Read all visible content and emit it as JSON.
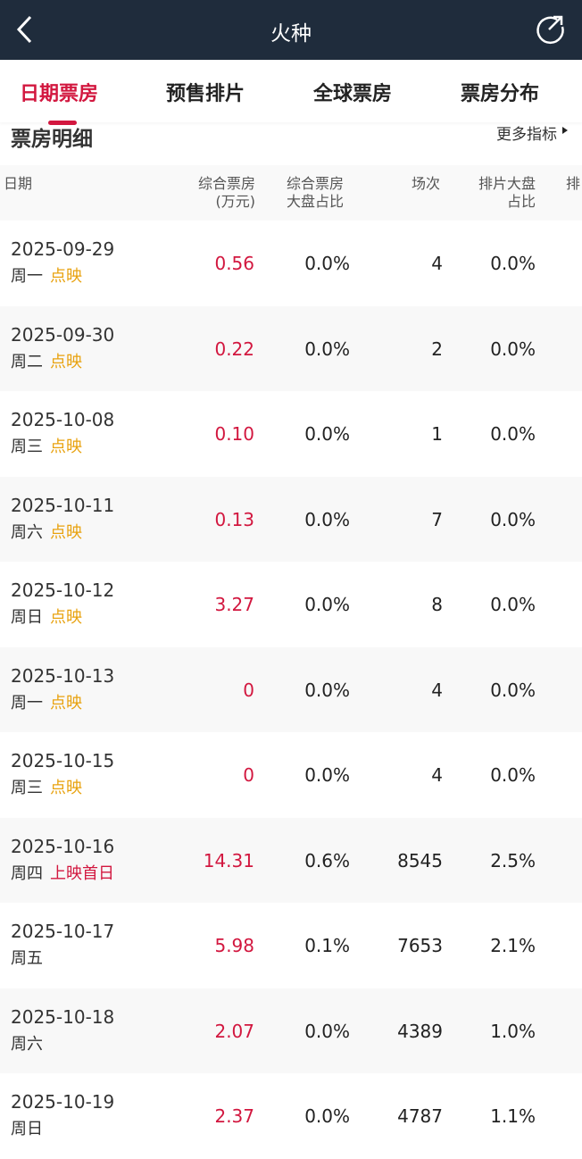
{
  "nav": {
    "title": "火种",
    "back_icon": "chevron-left-icon",
    "share_icon": "share-icon"
  },
  "tabs": [
    {
      "label": "日期票房",
      "active": true
    },
    {
      "label": "预售排片"
    },
    {
      "label": "全球票房"
    },
    {
      "label": "票房分布"
    }
  ],
  "section": {
    "title": "票房明细",
    "more": "更多指标"
  },
  "table": {
    "headers": [
      "日期",
      "综合票房",
      "(万元)",
      "综合票房",
      "大盘占比",
      "场次",
      "排片大盘",
      "占比",
      "排"
    ],
    "rows": [
      {
        "date": "2025-09-29",
        "weekday": "周一",
        "tag": "点映",
        "tag_color": "orange",
        "box": "0.56",
        "share": "0.0%",
        "shows": "4",
        "sched": "0.0%"
      },
      {
        "date": "2025-09-30",
        "weekday": "周二",
        "tag": "点映",
        "tag_color": "orange",
        "box": "0.22",
        "share": "0.0%",
        "shows": "2",
        "sched": "0.0%"
      },
      {
        "date": "2025-10-08",
        "weekday": "周三",
        "tag": "点映",
        "tag_color": "orange",
        "box": "0.10",
        "share": "0.0%",
        "shows": "1",
        "sched": "0.0%"
      },
      {
        "date": "2025-10-11",
        "weekday": "周六",
        "tag": "点映",
        "tag_color": "orange",
        "box": "0.13",
        "share": "0.0%",
        "shows": "7",
        "sched": "0.0%"
      },
      {
        "date": "2025-10-12",
        "weekday": "周日",
        "tag": "点映",
        "tag_color": "orange",
        "box": "3.27",
        "share": "0.0%",
        "shows": "8",
        "sched": "0.0%"
      },
      {
        "date": "2025-10-13",
        "weekday": "周一",
        "tag": "点映",
        "tag_color": "orange",
        "box": "0",
        "share": "0.0%",
        "shows": "4",
        "sched": "0.0%"
      },
      {
        "date": "2025-10-15",
        "weekday": "周三",
        "tag": "点映",
        "tag_color": "orange",
        "box": "0",
        "share": "0.0%",
        "shows": "4",
        "sched": "0.0%"
      },
      {
        "date": "2025-10-16",
        "weekday": "周四",
        "tag": "上映首日",
        "tag_color": "red",
        "box": "14.31",
        "share": "0.6%",
        "shows": "8545",
        "sched": "2.5%"
      },
      {
        "date": "2025-10-17",
        "weekday": "周五",
        "tag": "",
        "box": "5.98",
        "share": "0.1%",
        "shows": "7653",
        "sched": "2.1%"
      },
      {
        "date": "2025-10-18",
        "weekday": "周六",
        "weekday_red": true,
        "tag": "",
        "box": "2.07",
        "share": "0.0%",
        "shows": "4389",
        "sched": "1.0%"
      },
      {
        "date": "2025-10-19",
        "weekday": "周日",
        "weekday_red": true,
        "tag": "",
        "box": "2.37",
        "share": "0.0%",
        "shows": "4787",
        "sched": "1.1%"
      }
    ]
  },
  "colors": {
    "accent": "#d2173f",
    "tag_orange": "#e8a20f",
    "nav_bg": "#1f2c3c"
  }
}
